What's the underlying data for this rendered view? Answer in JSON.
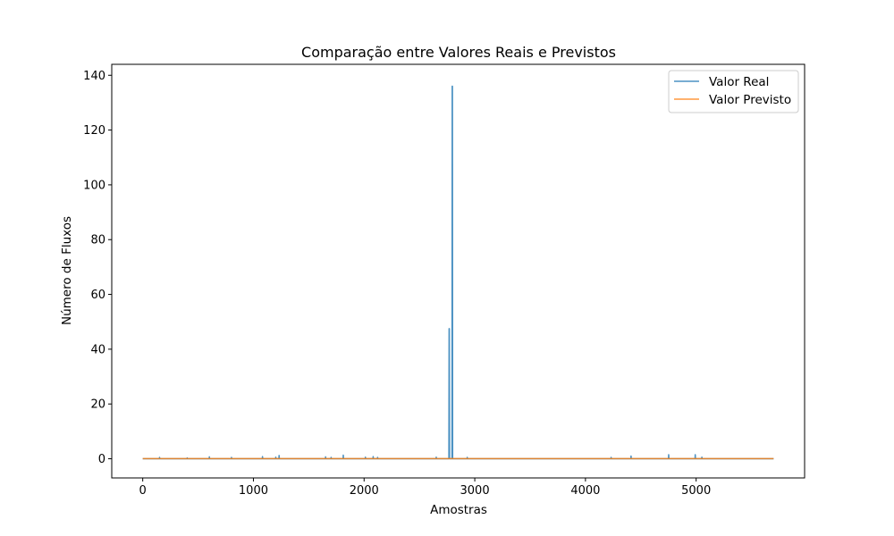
{
  "chart_data": {
    "type": "line",
    "title": "Comparação entre Valores Reais e Previstos",
    "xlabel": "Amostras",
    "ylabel": "Número de Fluxos",
    "xlim": [
      -280,
      5980
    ],
    "ylim": [
      -7,
      144
    ],
    "xticks": [
      0,
      1000,
      2000,
      3000,
      4000,
      5000
    ],
    "yticks": [
      0,
      20,
      40,
      60,
      80,
      100,
      120,
      140
    ],
    "grid": false,
    "legend_position": "top-right",
    "colors": {
      "Valor Real": "#1f77b4",
      "Valor Previsto": "#ff7f0e"
    },
    "series": [
      {
        "name": "Valor Real",
        "x": [
          0,
          150,
          152,
          154,
          400,
          402,
          404,
          600,
          602,
          604,
          800,
          802,
          804,
          1080,
          1082,
          1084,
          1200,
          1202,
          1204,
          1230,
          1232,
          1234,
          1650,
          1652,
          1654,
          1700,
          1702,
          1704,
          1810,
          1812,
          1814,
          2010,
          2012,
          2014,
          2080,
          2082,
          2084,
          2120,
          2122,
          2124,
          2650,
          2652,
          2654,
          2766,
          2768,
          2770,
          2772,
          2774,
          2794,
          2796,
          2798,
          2800,
          2802,
          2930,
          2932,
          2934,
          4230,
          4232,
          4234,
          4410,
          4412,
          4414,
          4750,
          4752,
          4754,
          4990,
          4992,
          4994,
          5050,
          5052,
          5054,
          5700
        ],
        "y": [
          0,
          0,
          0.5,
          0,
          0,
          0.3,
          0,
          0,
          0.7,
          0,
          0,
          0.5,
          0,
          0,
          0.8,
          0,
          0,
          0.6,
          0,
          0,
          1.2,
          0,
          0,
          0.7,
          0,
          0,
          0.5,
          0,
          0,
          1.3,
          0,
          0,
          0.6,
          0,
          0,
          0.8,
          0,
          0,
          0.5,
          0,
          0,
          0.6,
          0,
          0,
          47.5,
          47.5,
          0,
          0,
          0,
          136,
          136,
          0,
          0,
          0,
          0.5,
          0,
          0,
          0.5,
          0,
          0,
          1.0,
          0,
          0,
          1.5,
          0,
          0,
          1.5,
          0,
          0,
          0.6,
          0,
          0
        ]
      },
      {
        "name": "Valor Previsto",
        "x": [
          0,
          5700
        ],
        "y": [
          0.05,
          0.05
        ]
      }
    ]
  }
}
